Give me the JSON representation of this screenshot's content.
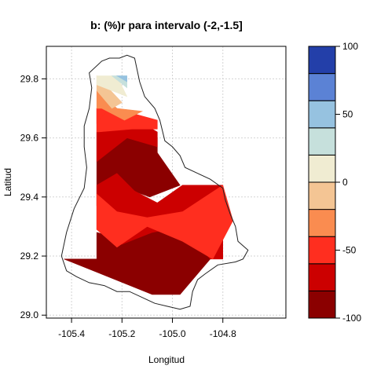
{
  "chart_data": {
    "type": "heatmap",
    "title": "b:   (%)r para intervalo (-2,-1.5]",
    "xlabel": "Longitud",
    "ylabel": "Latitud",
    "xlim": [
      -105.5,
      -104.55
    ],
    "ylim": [
      28.99,
      29.91
    ],
    "xticks": [
      -105.4,
      -105.2,
      -105.0,
      -104.8
    ],
    "xtick_labels": [
      "-105.4",
      "-105.2",
      "-105.0",
      "-104.8"
    ],
    "yticks": [
      29.0,
      29.2,
      29.4,
      29.6,
      29.8
    ],
    "ytick_labels": [
      "29.0",
      "29.2",
      "29.4",
      "29.6",
      "29.8"
    ],
    "grid": true,
    "colorbar": {
      "levels": [
        -100,
        -80,
        -60,
        -40,
        -20,
        0,
        20,
        40,
        60,
        80,
        100
      ],
      "colors": [
        "#8b0000",
        "#cc0000",
        "#ff2e1f",
        "#fa8c50",
        "#f4c594",
        "#f0ecd2",
        "#c6e0dc",
        "#96c2e0",
        "#5b82d5",
        "#233fa9"
      ],
      "tick_values": [
        -100,
        -50,
        0,
        50,
        100
      ],
      "tick_labels": [
        "-100",
        "-50",
        "0",
        "50",
        "100"
      ]
    },
    "fill_regions": [
      {
        "level": -100,
        "points": [
          [
            -105.43,
            29.19
          ],
          [
            -105.3,
            29.19
          ],
          [
            -105.3,
            29.28
          ],
          [
            -105.21,
            29.26
          ],
          [
            -105.15,
            29.35
          ],
          [
            -105.05,
            29.38
          ],
          [
            -104.94,
            29.43
          ],
          [
            -104.94,
            29.28
          ],
          [
            -104.85,
            29.19
          ],
          [
            -104.97,
            29.07
          ],
          [
            -105.08,
            29.07
          ]
        ]
      },
      {
        "level": -100,
        "points": [
          [
            -105.3,
            29.37
          ],
          [
            -105.3,
            29.62
          ],
          [
            -105.2,
            29.66
          ],
          [
            -105.06,
            29.6
          ],
          [
            -105.06,
            29.55
          ],
          [
            -104.97,
            29.44
          ],
          [
            -105.09,
            29.4
          ],
          [
            -105.25,
            29.45
          ]
        ]
      },
      {
        "level": -80,
        "points": [
          [
            -105.3,
            29.29
          ],
          [
            -105.3,
            29.44
          ],
          [
            -105.22,
            29.48
          ],
          [
            -105.15,
            29.42
          ],
          [
            -105.06,
            29.38
          ],
          [
            -104.96,
            29.44
          ],
          [
            -104.8,
            29.44
          ],
          [
            -104.8,
            29.19
          ],
          [
            -104.85,
            29.19
          ],
          [
            -104.96,
            29.3
          ],
          [
            -105.08,
            29.28
          ],
          [
            -105.2,
            29.24
          ]
        ]
      },
      {
        "level": -80,
        "points": [
          [
            -105.3,
            29.52
          ],
          [
            -105.3,
            29.7
          ],
          [
            -105.23,
            29.7
          ],
          [
            -105.14,
            29.66
          ],
          [
            -105.06,
            29.62
          ],
          [
            -105.06,
            29.57
          ],
          [
            -105.18,
            29.6
          ]
        ]
      },
      {
        "level": -60,
        "points": [
          [
            -105.3,
            29.29
          ],
          [
            -105.3,
            29.41
          ],
          [
            -105.22,
            29.35
          ],
          [
            -105.1,
            29.33
          ],
          [
            -104.96,
            29.35
          ],
          [
            -104.8,
            29.44
          ],
          [
            -104.76,
            29.32
          ],
          [
            -104.84,
            29.19
          ],
          [
            -104.96,
            29.25
          ],
          [
            -105.1,
            29.3
          ],
          [
            -105.22,
            29.23
          ]
        ]
      },
      {
        "level": -60,
        "points": [
          [
            -105.3,
            29.62
          ],
          [
            -105.3,
            29.7
          ],
          [
            -105.23,
            29.7
          ],
          [
            -105.06,
            29.66
          ],
          [
            -105.06,
            29.63
          ],
          [
            -105.16,
            29.63
          ]
        ]
      },
      {
        "level": -60,
        "points": [
          [
            -105.3,
            29.65
          ],
          [
            -105.3,
            29.7
          ],
          [
            -105.25,
            29.7
          ]
        ]
      },
      {
        "level": -40,
        "points": [
          [
            -105.28,
            29.7
          ],
          [
            -105.22,
            29.7
          ],
          [
            -105.12,
            29.69
          ],
          [
            -105.19,
            29.66
          ]
        ]
      },
      {
        "level": -40,
        "points": [
          [
            -105.3,
            29.7
          ],
          [
            -105.3,
            29.76
          ],
          [
            -105.22,
            29.7
          ]
        ]
      },
      {
        "level": -20,
        "points": [
          [
            -105.3,
            29.76
          ],
          [
            -105.3,
            29.81
          ],
          [
            -105.2,
            29.72
          ],
          [
            -105.24,
            29.7
          ]
        ]
      },
      {
        "level": 0,
        "points": [
          [
            -105.3,
            29.78
          ],
          [
            -105.3,
            29.81
          ],
          [
            -105.22,
            29.81
          ],
          [
            -105.18,
            29.74
          ]
        ]
      },
      {
        "level": 20,
        "points": [
          [
            -105.24,
            29.81
          ],
          [
            -105.18,
            29.81
          ],
          [
            -105.18,
            29.77
          ]
        ]
      },
      {
        "level": 40,
        "points": [
          [
            -105.22,
            29.81
          ],
          [
            -105.18,
            29.81
          ],
          [
            -105.18,
            29.79
          ]
        ]
      }
    ],
    "boundary": [
      [
        -105.28,
        29.86
      ],
      [
        -105.25,
        29.87
      ],
      [
        -105.21,
        29.87
      ],
      [
        -105.18,
        29.88
      ],
      [
        -105.15,
        29.87
      ],
      [
        -105.13,
        29.79
      ],
      [
        -105.11,
        29.74
      ],
      [
        -105.07,
        29.7
      ],
      [
        -105.05,
        29.66
      ],
      [
        -105.03,
        29.59
      ],
      [
        -105.0,
        29.57
      ],
      [
        -104.97,
        29.54
      ],
      [
        -104.95,
        29.5
      ],
      [
        -104.9,
        29.48
      ],
      [
        -104.85,
        29.46
      ],
      [
        -104.8,
        29.43
      ],
      [
        -104.79,
        29.39
      ],
      [
        -104.77,
        29.34
      ],
      [
        -104.75,
        29.3
      ],
      [
        -104.74,
        29.25
      ],
      [
        -104.7,
        29.22
      ],
      [
        -104.72,
        29.19
      ],
      [
        -104.75,
        29.18
      ],
      [
        -104.82,
        29.17
      ],
      [
        -104.87,
        29.14
      ],
      [
        -104.9,
        29.12
      ],
      [
        -104.92,
        29.08
      ],
      [
        -104.93,
        29.03
      ],
      [
        -104.97,
        29.02
      ],
      [
        -105.02,
        29.03
      ],
      [
        -105.07,
        29.04
      ],
      [
        -105.12,
        29.06
      ],
      [
        -105.17,
        29.08
      ],
      [
        -105.22,
        29.08
      ],
      [
        -105.27,
        29.1
      ],
      [
        -105.33,
        29.11
      ],
      [
        -105.38,
        29.13
      ],
      [
        -105.42,
        29.15
      ],
      [
        -105.44,
        29.2
      ],
      [
        -105.42,
        29.28
      ],
      [
        -105.39,
        29.36
      ],
      [
        -105.35,
        29.43
      ],
      [
        -105.34,
        29.5
      ],
      [
        -105.35,
        29.57
      ],
      [
        -105.35,
        29.64
      ],
      [
        -105.33,
        29.7
      ],
      [
        -105.32,
        29.77
      ],
      [
        -105.33,
        29.82
      ]
    ]
  }
}
